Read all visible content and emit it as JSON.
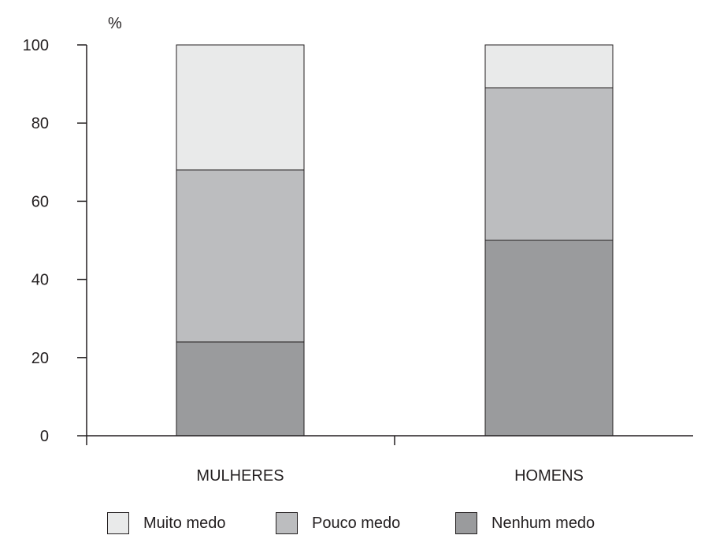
{
  "chart_data": {
    "type": "bar",
    "stacked": true,
    "ylabel": "%",
    "ylim": [
      0,
      100
    ],
    "yticks": [
      0,
      20,
      40,
      60,
      80,
      100
    ],
    "categories": [
      "MULHERES",
      "HOMENS"
    ],
    "series": [
      {
        "name": "Nenhum medo",
        "values": [
          24,
          50
        ],
        "color": "#9a9b9d"
      },
      {
        "name": "Pouco medo",
        "values": [
          44,
          39
        ],
        "color": "#bcbdbf"
      },
      {
        "name": "Muito medo",
        "values": [
          32,
          11
        ],
        "color": "#e9eaea"
      }
    ],
    "legend_order": [
      "Muito medo",
      "Pouco medo",
      "Nenhum medo"
    ],
    "legend_position": "bottom",
    "grid": false
  }
}
